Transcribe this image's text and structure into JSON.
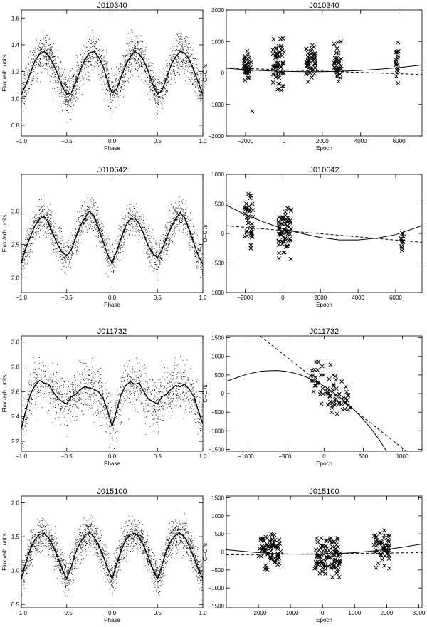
{
  "figure": {
    "panels": [
      {
        "id": "p1-left",
        "title": "J010340",
        "xlabel": "Phase",
        "ylabel": "Flux /arb. units",
        "xlim": [
          -1.0,
          1.0
        ],
        "ylim": [
          0.72,
          1.66
        ],
        "xticks": [
          -1.0,
          -0.5,
          0.0,
          0.5,
          1.0
        ],
        "xtick_labels": [
          "−1.0",
          "−0.5",
          "0.0",
          "0.5",
          "1.0"
        ],
        "yticks": [
          0.8,
          1.0,
          1.2,
          1.4,
          1.6
        ],
        "ytick_labels": [
          "0.8",
          "1.0",
          "1.2",
          "1.4",
          "1.6"
        ]
      },
      {
        "id": "p1-right",
        "title": "J010340",
        "xlabel": "Epoch",
        "ylabel": "O−C /s",
        "xlim": [
          -3000,
          7200
        ],
        "ylim": [
          -2000,
          2000
        ],
        "xticks": [
          -2000,
          0,
          2000,
          4000,
          6000
        ],
        "xtick_labels": [
          "−2000",
          "0",
          "2000",
          "4000",
          "6000"
        ],
        "yticks": [
          -2000,
          -1000,
          0,
          1000,
          2000
        ],
        "ytick_labels": [
          "−2000",
          "−1000",
          "0",
          "1000",
          "2000"
        ]
      },
      {
        "id": "p2-left",
        "title": "J010642",
        "xlabel": "Phase",
        "ylabel": "Flux /arb. units",
        "xlim": [
          -1.0,
          1.0
        ],
        "ylim": [
          1.78,
          3.55
        ],
        "xticks": [
          -1.0,
          -0.5,
          0.0,
          0.5,
          1.0
        ],
        "xtick_labels": [
          "−1.0",
          "−0.5",
          "0.0",
          "0.5",
          "1.0"
        ],
        "yticks": [
          2.0,
          2.5,
          3.0
        ],
        "ytick_labels": [
          "2.0",
          "2.5",
          "3.0"
        ]
      },
      {
        "id": "p2-right",
        "title": "J010642",
        "xlabel": "Epoch",
        "ylabel": "O−C /s",
        "xlim": [
          -3000,
          7400
        ],
        "ylim": [
          -1000,
          1000
        ],
        "xticks": [
          -2000,
          0,
          2000,
          4000,
          6000
        ],
        "xtick_labels": [
          "−2000",
          "0",
          "2000",
          "4000",
          "6000"
        ],
        "yticks": [
          -1000,
          -500,
          0,
          500,
          1000
        ],
        "ytick_labels": [
          "−1000",
          "−500",
          "0",
          "500",
          "1000"
        ]
      },
      {
        "id": "p3-left",
        "title": "J011732",
        "xlabel": "Phase",
        "ylabel": "Flux /arb. units",
        "xlim": [
          -1.0,
          1.0
        ],
        "ylim": [
          2.12,
          3.05
        ],
        "xticks": [
          -1.0,
          -0.5,
          0.0,
          0.5,
          1.0
        ],
        "xtick_labels": [
          "−1.0",
          "−0.5",
          "0.0",
          "0.5",
          "1.0"
        ],
        "yticks": [
          2.2,
          2.4,
          2.6,
          2.8,
          3.0
        ],
        "ytick_labels": [
          "2.2",
          "2.4",
          "2.6",
          "2.8",
          "3.0"
        ]
      },
      {
        "id": "p3-right",
        "title": "J011732",
        "xlabel": "Epoch",
        "ylabel": "O−C /s",
        "xlim": [
          -1250,
          1250
        ],
        "ylim": [
          -1550,
          1550
        ],
        "xticks": [
          -1000,
          -500,
          0,
          500,
          1000
        ],
        "xtick_labels": [
          "−1000",
          "−500",
          "0",
          "500",
          "1000"
        ],
        "yticks": [
          -1500,
          -1000,
          -500,
          0,
          500,
          1000,
          1500
        ],
        "ytick_labels": [
          "−1500",
          "−1000",
          "−500",
          "0",
          "500",
          "1000",
          "1500"
        ]
      },
      {
        "id": "p4-left",
        "title": "J015100",
        "xlabel": "Phase",
        "ylabel": "Flux /arb. units",
        "xlim": [
          -1.0,
          1.0
        ],
        "ylim": [
          0.45,
          2.1
        ],
        "xticks": [
          -1.0,
          -0.5,
          0.0,
          0.5,
          1.0
        ],
        "xtick_labels": [
          "−1.0",
          "−0.5",
          "0.0",
          "0.5",
          "1.0"
        ],
        "yticks": [
          0.5,
          1.0,
          1.5,
          2.0
        ],
        "ytick_labels": [
          "0.5",
          "1.0",
          "1.5",
          "2.0"
        ]
      },
      {
        "id": "p4-right",
        "title": "J015100",
        "xlabel": "Epoch",
        "ylabel": "O−C /s",
        "xlim": [
          -3000,
          3100
        ],
        "ylim": [
          -1550,
          1550
        ],
        "xticks": [
          -2000,
          -1000,
          0,
          1000,
          2000,
          3000
        ],
        "xtick_labels": [
          "−2000",
          "−1000",
          "0",
          "1000",
          "2000",
          "3000"
        ],
        "yticks": [
          -1500,
          -1000,
          -500,
          0,
          500,
          1000,
          1500
        ],
        "ytick_labels": [
          "−1500",
          "−1000",
          "−500",
          "0",
          "500",
          "1000",
          "1500"
        ]
      }
    ]
  },
  "chart_data": [
    {
      "type": "scatter",
      "title": "J010340",
      "xlabel": "Phase",
      "ylabel": "Flux /arb. units",
      "xlim": [
        -1.0,
        1.0
      ],
      "ylim": [
        0.72,
        1.66
      ],
      "grid": false,
      "scatter_model": {
        "kind": "periodic",
        "scatter": 0.13,
        "points": 2600
      },
      "binned_curve": {
        "x": [
          -1.0,
          -0.95,
          -0.9,
          -0.85,
          -0.8,
          -0.75,
          -0.7,
          -0.65,
          -0.6,
          -0.55,
          -0.5,
          -0.45,
          -0.4,
          -0.35,
          -0.3,
          -0.25,
          -0.2,
          -0.15,
          -0.1,
          -0.05,
          0.0,
          0.05,
          0.1,
          0.15,
          0.2,
          0.25,
          0.3,
          0.35,
          0.4,
          0.45,
          0.5,
          0.55,
          0.6,
          0.65,
          0.7,
          0.75,
          0.8,
          0.85,
          0.9,
          0.95,
          1.0
        ],
        "y": [
          1.03,
          1.1,
          1.19,
          1.28,
          1.33,
          1.35,
          1.32,
          1.26,
          1.18,
          1.09,
          1.03,
          1.04,
          1.12,
          1.21,
          1.29,
          1.34,
          1.35,
          1.31,
          1.24,
          1.13,
          1.04,
          1.07,
          1.16,
          1.25,
          1.31,
          1.35,
          1.33,
          1.28,
          1.2,
          1.1,
          1.03,
          1.06,
          1.15,
          1.25,
          1.31,
          1.35,
          1.34,
          1.29,
          1.21,
          1.12,
          1.03
        ]
      }
    },
    {
      "type": "scatter",
      "title": "J010340",
      "xlabel": "Epoch",
      "ylabel": "O−C /s",
      "xlim": [
        -3000,
        7200
      ],
      "ylim": [
        -2000,
        2000
      ],
      "grid": false,
      "clusters": [
        {
          "x": -1900,
          "spread_x": 200,
          "y_range": [
            -300,
            700
          ],
          "n": 40,
          "outliers": [
            [
              -1650,
              -1220
            ]
          ]
        },
        {
          "x": -300,
          "spread_x": 300,
          "y_range": [
            -550,
            1100
          ],
          "n": 55
        },
        {
          "x": 1400,
          "spread_x": 250,
          "y_range": [
            -300,
            900
          ],
          "n": 45
        },
        {
          "x": 2800,
          "spread_x": 200,
          "y_range": [
            -500,
            1000
          ],
          "n": 35
        },
        {
          "x": 5900,
          "spread_x": 80,
          "y_range": [
            -450,
            1000
          ],
          "n": 20
        }
      ],
      "fits": [
        {
          "style": "solid",
          "x": [
            -3000,
            -2000,
            -1000,
            0,
            1000,
            2000,
            3000,
            4000,
            5000,
            6000,
            7200
          ],
          "y": [
            150,
            100,
            70,
            50,
            40,
            40,
            55,
            80,
            120,
            170,
            250
          ]
        },
        {
          "style": "dashed",
          "x": [
            -3000,
            7200
          ],
          "y": [
            160,
            -50
          ]
        }
      ]
    },
    {
      "type": "scatter",
      "title": "J010642",
      "xlabel": "Phase",
      "ylabel": "Flux /arb. units",
      "xlim": [
        -1.0,
        1.0
      ],
      "ylim": [
        1.78,
        3.55
      ],
      "grid": false,
      "scatter_model": {
        "kind": "periodic",
        "scatter": 0.22,
        "points": 2200
      },
      "binned_curve": {
        "x": [
          -1.0,
          -0.95,
          -0.9,
          -0.85,
          -0.8,
          -0.75,
          -0.7,
          -0.65,
          -0.6,
          -0.55,
          -0.5,
          -0.45,
          -0.4,
          -0.35,
          -0.3,
          -0.25,
          -0.2,
          -0.15,
          -0.1,
          -0.05,
          0.0,
          0.05,
          0.1,
          0.15,
          0.2,
          0.25,
          0.3,
          0.35,
          0.4,
          0.45,
          0.5,
          0.55,
          0.6,
          0.65,
          0.7,
          0.75,
          0.8,
          0.85,
          0.9,
          0.95,
          1.0
        ],
        "y": [
          2.22,
          2.45,
          2.62,
          2.78,
          2.88,
          2.92,
          2.82,
          2.65,
          2.5,
          2.38,
          2.33,
          2.42,
          2.6,
          2.78,
          2.9,
          3.0,
          2.92,
          2.75,
          2.55,
          2.35,
          2.22,
          2.4,
          2.6,
          2.78,
          2.88,
          2.9,
          2.8,
          2.65,
          2.48,
          2.36,
          2.3,
          2.42,
          2.6,
          2.76,
          2.88,
          2.98,
          2.9,
          2.72,
          2.52,
          2.33,
          2.2
        ]
      }
    },
    {
      "type": "scatter",
      "title": "J010642",
      "xlabel": "Epoch",
      "ylabel": "O−C /s",
      "xlim": [
        -3000,
        7400
      ],
      "ylim": [
        -1000,
        1000
      ],
      "grid": false,
      "clusters": [
        {
          "x": -1800,
          "spread_x": 250,
          "y_range": [
            -250,
            800
          ],
          "n": 40
        },
        {
          "x": 100,
          "spread_x": 350,
          "y_range": [
            -450,
            550
          ],
          "n": 70
        },
        {
          "x": 6350,
          "spread_x": 80,
          "y_range": [
            -470,
            250
          ],
          "n": 12
        }
      ],
      "fits": [
        {
          "style": "solid",
          "x": [
            -3000,
            -2000,
            -1000,
            0,
            1000,
            2000,
            3000,
            4000,
            5000,
            6000,
            7400
          ],
          "y": [
            480,
            320,
            190,
            80,
            0,
            -70,
            -110,
            -110,
            -80,
            -20,
            130
          ]
        },
        {
          "style": "dashed",
          "x": [
            -3000,
            7400
          ],
          "y": [
            130,
            -150
          ]
        }
      ]
    },
    {
      "type": "scatter",
      "title": "J011732",
      "xlabel": "Phase",
      "ylabel": "Flux /arb. units",
      "xlim": [
        -1.0,
        1.0
      ],
      "ylim": [
        2.12,
        3.05
      ],
      "grid": false,
      "scatter_model": {
        "kind": "periodic",
        "scatter": 0.18,
        "points": 1800
      },
      "binned_curve": {
        "x": [
          -1.0,
          -0.95,
          -0.9,
          -0.85,
          -0.8,
          -0.75,
          -0.7,
          -0.65,
          -0.6,
          -0.55,
          -0.5,
          -0.45,
          -0.4,
          -0.35,
          -0.3,
          -0.25,
          -0.2,
          -0.15,
          -0.1,
          -0.05,
          0.0,
          0.05,
          0.1,
          0.15,
          0.2,
          0.25,
          0.3,
          0.35,
          0.4,
          0.45,
          0.5,
          0.55,
          0.6,
          0.65,
          0.7,
          0.75,
          0.8,
          0.85,
          0.9,
          0.95,
          1.0
        ],
        "y": [
          2.3,
          2.45,
          2.58,
          2.65,
          2.69,
          2.67,
          2.66,
          2.6,
          2.55,
          2.52,
          2.5,
          2.56,
          2.58,
          2.62,
          2.64,
          2.63,
          2.62,
          2.6,
          2.55,
          2.45,
          2.32,
          2.45,
          2.58,
          2.65,
          2.68,
          2.66,
          2.67,
          2.6,
          2.54,
          2.52,
          2.5,
          2.56,
          2.58,
          2.62,
          2.65,
          2.64,
          2.66,
          2.62,
          2.56,
          2.45,
          2.34
        ]
      }
    },
    {
      "type": "scatter",
      "title": "J011732",
      "xlabel": "Epoch",
      "ylabel": "O−C /s",
      "xlim": [
        -1250,
        1250
      ],
      "ylim": [
        -1550,
        1550
      ],
      "grid": false,
      "clusters": [
        {
          "x": 80,
          "spread_x": 260,
          "y_range": [
            -700,
            850
          ],
          "n": 70,
          "trend": -1.4
        }
      ],
      "fits": [
        {
          "style": "solid",
          "x": [
            -1250,
            -1100,
            -1000,
            -900,
            -800,
            -700,
            -600,
            -500,
            -400,
            -300,
            -200,
            -100,
            0,
            100,
            200,
            300,
            400,
            500,
            600,
            700,
            800
          ],
          "y": [
            330,
            440,
            510,
            560,
            600,
            615,
            620,
            600,
            560,
            500,
            420,
            320,
            200,
            60,
            -100,
            -280,
            -470,
            -700,
            -950,
            -1230,
            -1560
          ]
        },
        {
          "style": "dashed",
          "x": [
            -820,
            1050
          ],
          "y": [
            1550,
            -1550
          ]
        }
      ]
    },
    {
      "type": "scatter",
      "title": "J015100",
      "xlabel": "Phase",
      "ylabel": "Flux /arb. units",
      "xlim": [
        -1.0,
        1.0
      ],
      "ylim": [
        0.45,
        2.1
      ],
      "grid": false,
      "scatter_model": {
        "kind": "periodic",
        "scatter": 0.22,
        "points": 2800
      },
      "binned_curve": {
        "x": [
          -1.0,
          -0.95,
          -0.9,
          -0.85,
          -0.8,
          -0.75,
          -0.7,
          -0.65,
          -0.6,
          -0.55,
          -0.5,
          -0.45,
          -0.4,
          -0.35,
          -0.3,
          -0.25,
          -0.2,
          -0.15,
          -0.1,
          -0.05,
          0.0,
          0.05,
          0.1,
          0.15,
          0.2,
          0.25,
          0.3,
          0.35,
          0.4,
          0.45,
          0.5,
          0.55,
          0.6,
          0.65,
          0.7,
          0.75,
          0.8,
          0.85,
          0.9,
          0.95,
          1.0
        ],
        "y": [
          0.88,
          1.12,
          1.32,
          1.46,
          1.53,
          1.55,
          1.48,
          1.36,
          1.2,
          1.02,
          0.88,
          1.05,
          1.27,
          1.42,
          1.52,
          1.56,
          1.5,
          1.38,
          1.22,
          1.04,
          0.88,
          1.1,
          1.3,
          1.45,
          1.53,
          1.55,
          1.49,
          1.36,
          1.2,
          1.02,
          0.88,
          1.08,
          1.3,
          1.44,
          1.52,
          1.55,
          1.49,
          1.36,
          1.2,
          1.02,
          0.88
        ]
      }
    },
    {
      "type": "scatter",
      "title": "J015100",
      "xlabel": "Epoch",
      "ylabel": "O−C /s",
      "xlim": [
        -3000,
        3100
      ],
      "ylim": [
        -1550,
        1550
      ],
      "grid": false,
      "clusters": [
        {
          "x": -1650,
          "spread_x": 350,
          "y_range": [
            -500,
            550
          ],
          "n": 70
        },
        {
          "x": 150,
          "spread_x": 400,
          "y_range": [
            -700,
            380
          ],
          "n": 100
        },
        {
          "x": 1850,
          "spread_x": 250,
          "y_range": [
            -450,
            700
          ],
          "n": 55
        }
      ],
      "fits": [
        {
          "style": "solid",
          "x": [
            -3000,
            -2500,
            -2000,
            -1500,
            -1000,
            -500,
            0,
            500,
            1000,
            1500,
            2000,
            2500,
            3100
          ],
          "y": [
            60,
            20,
            -20,
            -45,
            -60,
            -65,
            -60,
            -45,
            -20,
            20,
            70,
            130,
            220
          ]
        },
        {
          "style": "dashed",
          "x": [
            -3000,
            3100
          ],
          "y": [
            -80,
            -20
          ]
        }
      ]
    }
  ]
}
